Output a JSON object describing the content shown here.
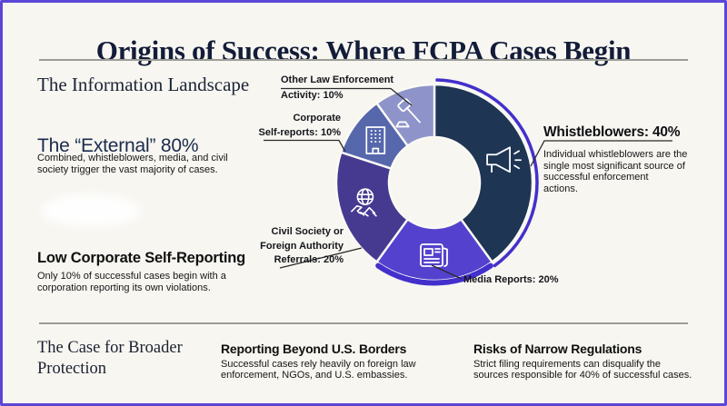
{
  "page": {
    "title": "Origins of Success: Where FCPA Cases Begin",
    "background_color": "#f7f6f1",
    "border_color": "#5b46d6",
    "divider_color": "#9d9d97"
  },
  "information_landscape": {
    "heading": "The Information Landscape",
    "external_title": "The “External” 80%",
    "external_body": "Combined, whistleblowers, media, and civil\nsociety trigger the vast majority of cases.",
    "self_report_title": "Low Corporate Self-Reporting",
    "self_report_body": "Only 10% of successful cases begin with a\ncorporation reporting its own violations."
  },
  "whistleblower_note": {
    "title": "Whistleblowers: 40%",
    "body": "Individual whistleblowers are the\nsingle most significant source of\nsuccessful enforcement\nactions."
  },
  "chart_data": {
    "type": "pie",
    "donut": true,
    "title": "",
    "segments": [
      {
        "label": "Whistleblowers",
        "value": 40,
        "color": "#1e3553",
        "icon": "megaphone-icon",
        "highlighted": true
      },
      {
        "label": "Media Reports",
        "value": 20,
        "color": "#5441cd",
        "icon": "newspaper-icon"
      },
      {
        "label": "Civil Society or Foreign Authority Referrals",
        "value": 20,
        "color": "#463a90",
        "icon": "handshake-globe-icon"
      },
      {
        "label": "Corporate Self-reports",
        "value": 10,
        "color": "#5767ac",
        "icon": "building-icon"
      },
      {
        "label": "Other Law Enforcement Activity",
        "value": 10,
        "color": "#8e94c9",
        "icon": "gavel-icon"
      }
    ],
    "callouts": {
      "other_law": "Other Law Enforcement\nActivity: 10%",
      "corporate": "Corporate\nSelf-reports: 10%",
      "civil_society": "Civil Society or\nForeign Authority\nReferrals: 20%",
      "media": "Media Reports: 20%"
    },
    "accent_ring_color": "#4330cc",
    "slice_border_color": "#fbfaf5",
    "layout": {
      "center": [
        475,
        198
      ],
      "outer_radius": 108,
      "inner_radius": 50,
      "icon_radius": 80,
      "start_angle": 0,
      "clockwise": true,
      "highlight_arcs": [
        {
          "from": 1.5,
          "to": 144,
          "radius": 113,
          "width": 3.5
        },
        {
          "from": 146,
          "to": 214,
          "radius": 110.5,
          "width": 6
        }
      ]
    }
  },
  "broader_protection": {
    "heading": "The Case for Broader\nProtection",
    "columns": [
      {
        "title": "Reporting Beyond U.S. Borders",
        "body": "Successful cases rely heavily on foreign law\nenforcement, NGOs, and U.S. embassies."
      },
      {
        "title": "Risks of Narrow Regulations",
        "body": "Strict filing requirements can disqualify the\nsources responsible for 40% of successful cases."
      }
    ]
  }
}
